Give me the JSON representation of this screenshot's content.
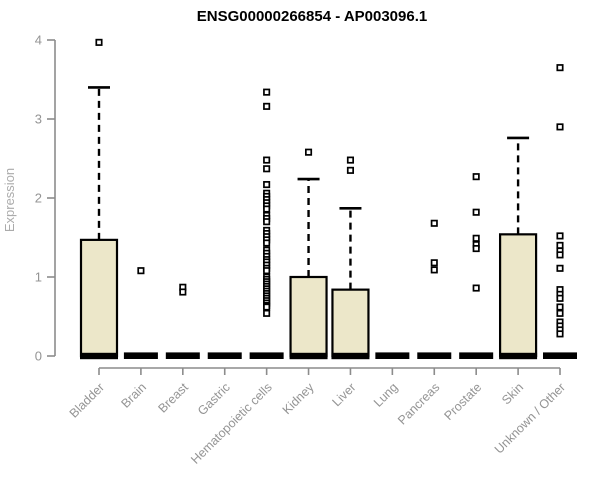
{
  "chart_data": {
    "type": "boxplot",
    "title": "ENSG00000266854 - AP003096.1",
    "ylabel": "Expression",
    "xlabel": "",
    "ylim": [
      0,
      4
    ],
    "yticks": [
      0,
      1,
      2,
      3,
      4
    ],
    "grid": false,
    "legend": "none",
    "categories": [
      "Bladder",
      "Brain",
      "Breast",
      "Gastric",
      "Hematopoietic cells",
      "Kidney",
      "Liver",
      "Lung",
      "Pancreas",
      "Prostate",
      "Skin",
      "Unknown / Other"
    ],
    "series": [
      {
        "name": "Bladder",
        "q1": 0,
        "median": 0,
        "q3": 1.47,
        "whisker_low": 0,
        "whisker_high": 3.4,
        "outliers": [
          3.97
        ]
      },
      {
        "name": "Brain",
        "q1": 0,
        "median": 0,
        "q3": 0,
        "whisker_low": 0,
        "whisker_high": 0,
        "outliers": [
          1.08
        ]
      },
      {
        "name": "Breast",
        "q1": 0,
        "median": 0,
        "q3": 0,
        "whisker_low": 0,
        "whisker_high": 0,
        "outliers": [
          0.87,
          0.81
        ]
      },
      {
        "name": "Gastric",
        "q1": 0,
        "median": 0,
        "q3": 0,
        "whisker_low": 0,
        "whisker_high": 0,
        "outliers": []
      },
      {
        "name": "Hematopoietic cells",
        "q1": 0,
        "median": 0,
        "q3": 0,
        "whisker_low": 0,
        "whisker_high": 0,
        "outliers": [
          3.34,
          3.16,
          2.48,
          2.37,
          2.17,
          2.06,
          2.02,
          1.98,
          1.94,
          1.9,
          1.86,
          1.78,
          1.74,
          1.7,
          1.59,
          1.55,
          1.51,
          1.47,
          1.43,
          1.34,
          1.3,
          1.26,
          1.22,
          1.19,
          1.15,
          1.11,
          1.08,
          1.0,
          0.97,
          0.94,
          0.91,
          0.88,
          0.85,
          0.82,
          0.79,
          0.76,
          0.73,
          0.7,
          0.67,
          0.64,
          0.62,
          0.54
        ]
      },
      {
        "name": "Kidney",
        "q1": 0,
        "median": 0,
        "q3": 1.0,
        "whisker_low": 0,
        "whisker_high": 2.24,
        "outliers": [
          2.58
        ]
      },
      {
        "name": "Liver",
        "q1": 0,
        "median": 0,
        "q3": 0.84,
        "whisker_low": 0,
        "whisker_high": 1.87,
        "outliers": [
          2.48,
          2.35
        ]
      },
      {
        "name": "Lung",
        "q1": 0,
        "median": 0,
        "q3": 0,
        "whisker_low": 0,
        "whisker_high": 0,
        "outliers": []
      },
      {
        "name": "Pancreas",
        "q1": 0,
        "median": 0,
        "q3": 0,
        "whisker_low": 0,
        "whisker_high": 0,
        "outliers": [
          1.68,
          1.18,
          1.09
        ]
      },
      {
        "name": "Prostate",
        "q1": 0,
        "median": 0,
        "q3": 0,
        "whisker_low": 0,
        "whisker_high": 0,
        "outliers": [
          2.27,
          1.82,
          1.49,
          1.41,
          1.36,
          0.86
        ]
      },
      {
        "name": "Skin",
        "q1": 0,
        "median": 0,
        "q3": 1.54,
        "whisker_low": 0,
        "whisker_high": 2.76,
        "outliers": []
      },
      {
        "name": "Unknown / Other",
        "q1": 0,
        "median": 0,
        "q3": 0,
        "whisker_low": 0,
        "whisker_high": 0,
        "outliers": [
          3.65,
          2.9,
          1.52,
          1.4,
          1.33,
          1.28,
          1.11,
          0.84,
          0.78,
          0.73,
          0.62,
          0.54,
          0.43,
          0.38,
          0.33,
          0.28
        ]
      }
    ],
    "style": {
      "box_fill": "#ece7c9",
      "box_stroke": "#000000",
      "median_color": "#000000",
      "whisker_color": "#000000",
      "outlier_stroke": "#000000",
      "outlier_fill": "#ffffff",
      "axis_color": "#8c8c8c",
      "tick_label_color": "#949494",
      "title_color": "#000000"
    }
  }
}
